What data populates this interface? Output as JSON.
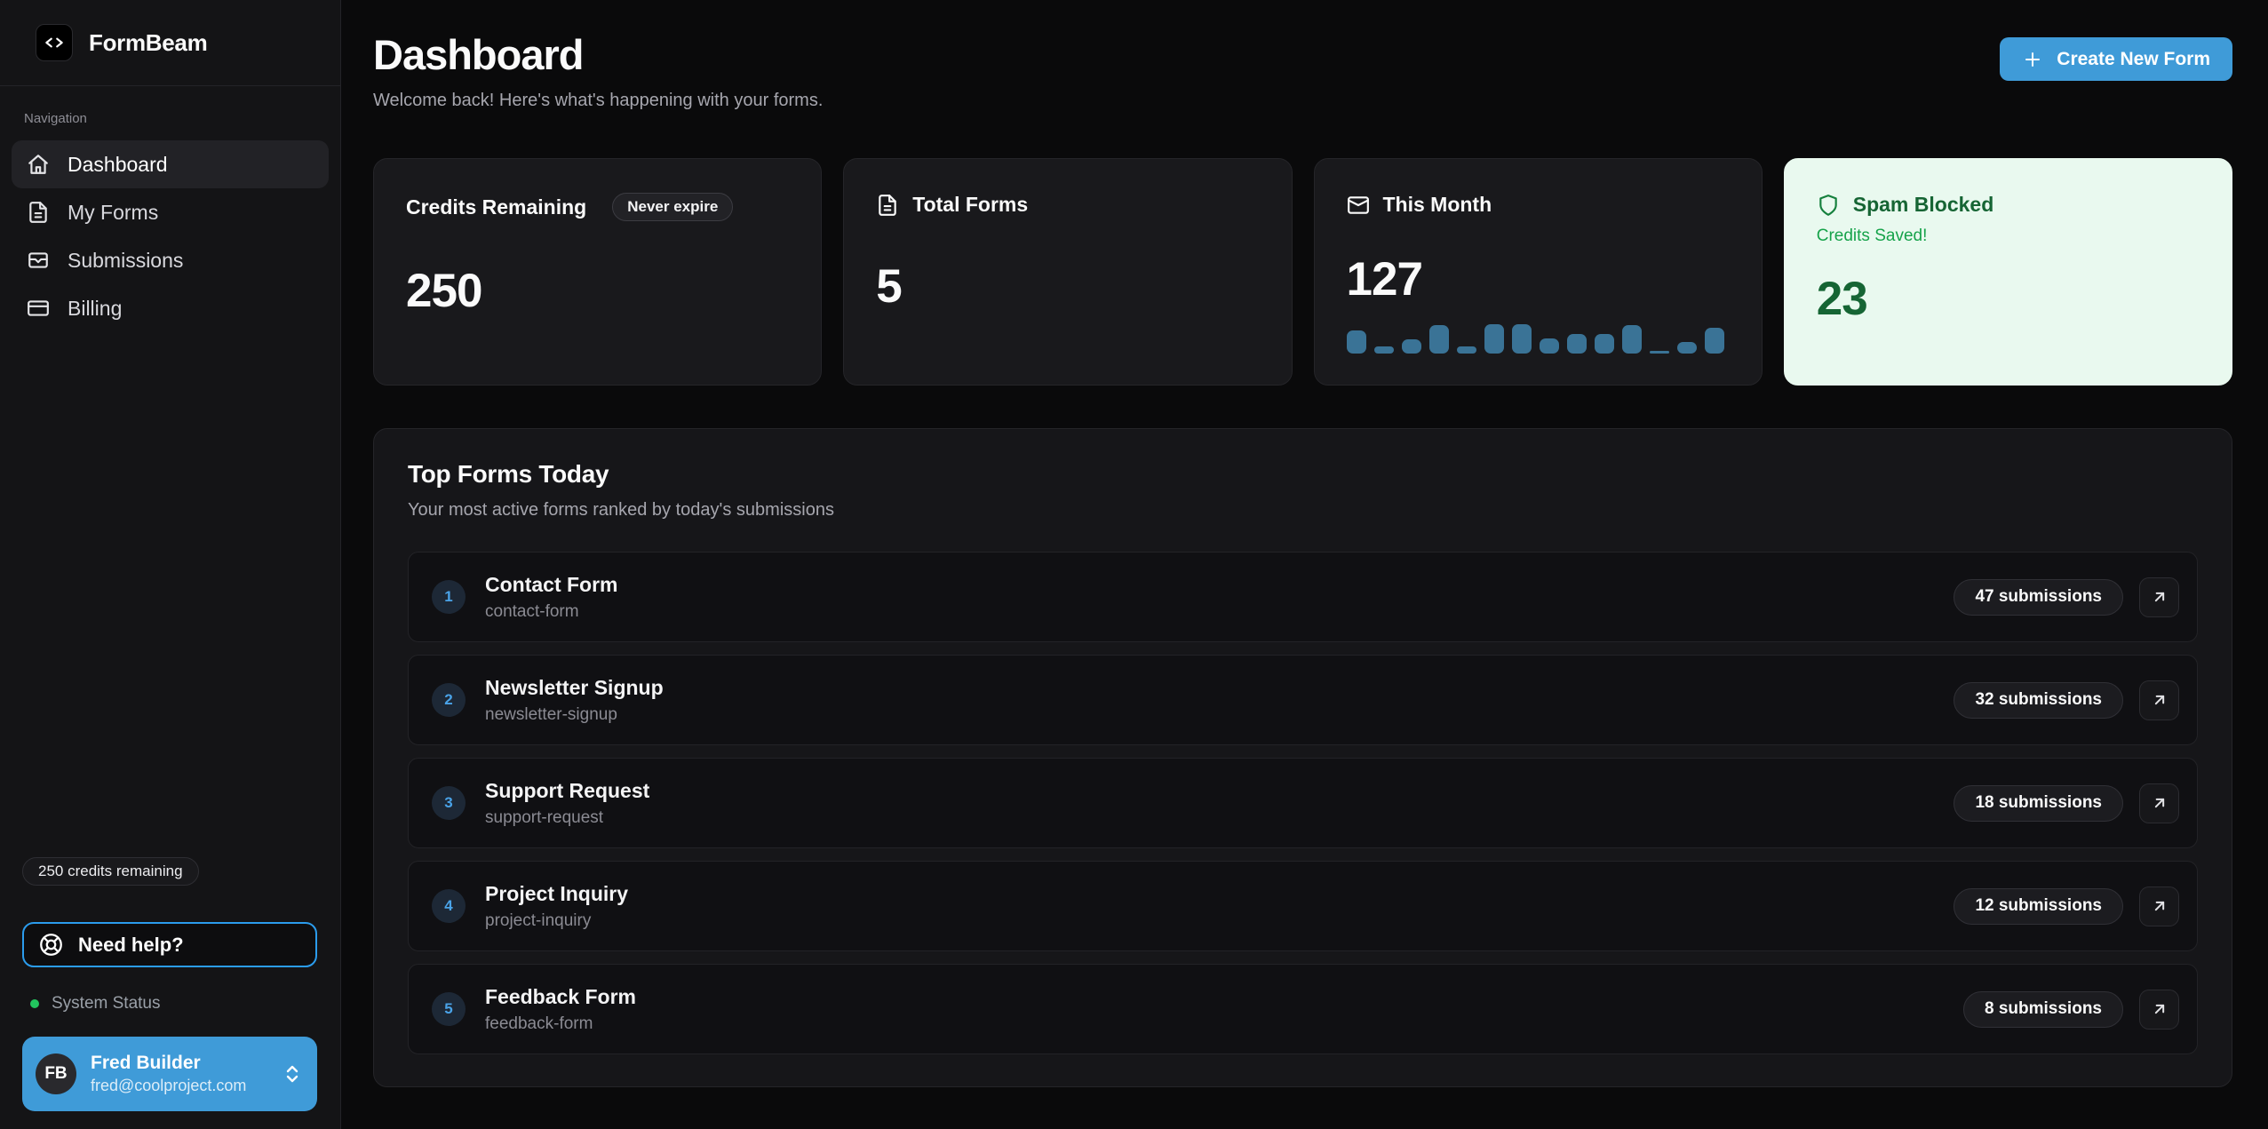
{
  "brand": {
    "name": "FormBeam",
    "logo_icon": "code-icon"
  },
  "sidebar": {
    "nav_label": "Navigation",
    "items": [
      {
        "label": "Dashboard",
        "icon": "home-icon",
        "active": true
      },
      {
        "label": "My Forms",
        "icon": "file-text-icon",
        "active": false
      },
      {
        "label": "Submissions",
        "icon": "inbox-icon",
        "active": false
      },
      {
        "label": "Billing",
        "icon": "credit-card-icon",
        "active": false
      }
    ],
    "credits_pill": "250 credits remaining",
    "help_button": {
      "label": "Need help?",
      "icon": "life-buoy-icon"
    },
    "system_status": "System Status",
    "user": {
      "initials": "FB",
      "name": "Fred Builder",
      "email": "fred@coolproject.com"
    }
  },
  "header": {
    "title": "Dashboard",
    "subtitle": "Welcome back! Here's what's happening with your forms.",
    "create_button": "Create New Form"
  },
  "stats": [
    {
      "label": "Credits Remaining",
      "badge": "Never expire",
      "value": "250"
    },
    {
      "label": "Total Forms",
      "icon": "file-text-icon",
      "value": "5"
    },
    {
      "label": "This Month",
      "icon": "mail-icon",
      "value": "127",
      "sparkline": [
        26,
        8,
        16,
        32,
        8,
        33,
        33,
        17,
        22,
        22,
        32,
        3,
        13,
        29
      ],
      "sparkline_color": "#3a7396"
    },
    {
      "label": "Spam Blocked",
      "icon": "shield-icon",
      "subtitle": "Credits Saved!",
      "value": "23"
    }
  ],
  "top_forms": {
    "title": "Top Forms Today",
    "subtitle": "Your most active forms ranked by today's submissions",
    "rows": [
      {
        "rank": "1",
        "name": "Contact Form",
        "slug": "contact-form",
        "count": "47 submissions"
      },
      {
        "rank": "2",
        "name": "Newsletter Signup",
        "slug": "newsletter-signup",
        "count": "32 submissions"
      },
      {
        "rank": "3",
        "name": "Support Request",
        "slug": "support-request",
        "count": "18 submissions"
      },
      {
        "rank": "4",
        "name": "Project Inquiry",
        "slug": "project-inquiry",
        "count": "12 submissions"
      },
      {
        "rank": "5",
        "name": "Feedback Form",
        "slug": "feedback-form",
        "count": "8 submissions"
      }
    ]
  },
  "colors": {
    "accent_blue": "#3f9bd8",
    "rank_blue": "#4aa3e8",
    "bar_blue": "#3a7396",
    "green_card_bg": "#e9f9ef",
    "green_dark": "#166534",
    "green_mid": "#16a34a",
    "status_green": "#22c55e"
  }
}
